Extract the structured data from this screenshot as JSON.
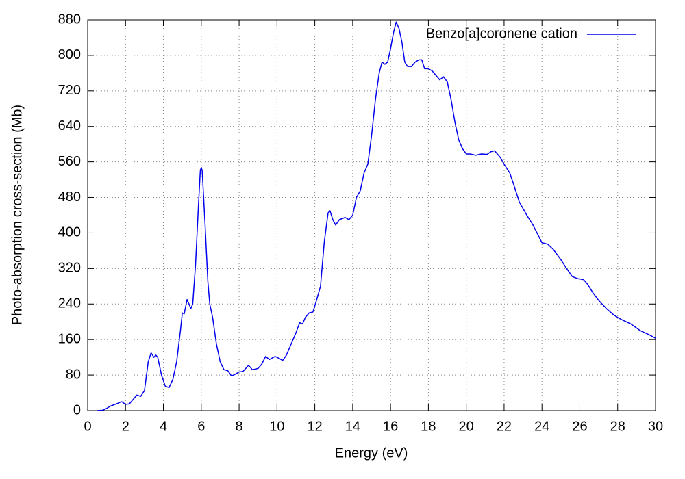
{
  "chart_data": {
    "type": "line",
    "xlabel": "Energy (eV)",
    "ylabel": "Photo-absorption cross-section (Mb)",
    "xlim": [
      0,
      30
    ],
    "ylim": [
      0,
      880
    ],
    "xticks": [
      0,
      2,
      4,
      6,
      8,
      10,
      12,
      14,
      16,
      18,
      20,
      22,
      24,
      26,
      28,
      30
    ],
    "yticks": [
      0,
      80,
      160,
      240,
      320,
      400,
      480,
      560,
      640,
      720,
      800,
      880
    ],
    "grid": true,
    "legend": "upper right",
    "x": [
      0.5,
      0.8,
      1,
      1.2,
      1.5,
      1.8,
      2.0,
      2.2,
      2.5,
      2.6,
      2.8,
      3.0,
      3.2,
      3.35,
      3.5,
      3.6,
      3.7,
      3.9,
      4.1,
      4.3,
      4.5,
      4.7,
      4.9,
      5.0,
      5.1,
      5.25,
      5.35,
      5.45,
      5.55,
      5.7,
      5.85,
      5.95,
      6.0,
      6.05,
      6.2,
      6.35,
      6.45,
      6.6,
      6.8,
      7.0,
      7.2,
      7.4,
      7.6,
      7.8,
      8.0,
      8.2,
      8.5,
      8.7,
      9.0,
      9.2,
      9.4,
      9.6,
      9.9,
      10.1,
      10.3,
      10.5,
      10.8,
      11.0,
      11.2,
      11.35,
      11.5,
      11.7,
      11.9,
      12.1,
      12.3,
      12.5,
      12.7,
      12.8,
      12.95,
      13.1,
      13.3,
      13.6,
      13.8,
      14.0,
      14.2,
      14.4,
      14.6,
      14.8,
      15.0,
      15.2,
      15.4,
      15.55,
      15.7,
      15.85,
      16.0,
      16.15,
      16.3,
      16.45,
      16.6,
      16.75,
      16.9,
      17.1,
      17.3,
      17.5,
      17.65,
      17.8,
      18.0,
      18.2,
      18.4,
      18.6,
      18.8,
      19.0,
      19.2,
      19.4,
      19.6,
      19.8,
      20.0,
      20.2,
      20.5,
      20.8,
      21.1,
      21.3,
      21.5,
      21.8,
      22.0,
      22.3,
      22.5,
      22.8,
      23.2,
      23.5,
      23.8,
      24.0,
      24.3,
      24.6,
      25.0,
      25.3,
      25.6,
      25.9,
      26.2,
      26.4,
      26.7,
      27.0,
      27.4,
      27.8,
      28.2,
      28.7,
      29.2,
      29.7,
      30
    ],
    "series": [
      {
        "name": "Benzo[a]coronene cation",
        "color": "#0000ee",
        "values": [
          0,
          1,
          5,
          10,
          15,
          20,
          14,
          15,
          30,
          35,
          32,
          45,
          110,
          130,
          120,
          125,
          120,
          80,
          55,
          52,
          70,
          110,
          180,
          220,
          218,
          250,
          240,
          230,
          240,
          330,
          460,
          540,
          548,
          540,
          420,
          290,
          240,
          210,
          150,
          110,
          92,
          90,
          78,
          82,
          87,
          88,
          102,
          92,
          95,
          105,
          122,
          115,
          122,
          118,
          113,
          125,
          155,
          175,
          198,
          195,
          210,
          220,
          222,
          250,
          280,
          380,
          445,
          450,
          430,
          418,
          430,
          435,
          430,
          440,
          480,
          495,
          535,
          555,
          620,
          700,
          760,
          785,
          780,
          785,
          815,
          850,
          875,
          860,
          830,
          785,
          775,
          775,
          785,
          790,
          790,
          770,
          770,
          765,
          755,
          745,
          752,
          740,
          700,
          650,
          610,
          590,
          578,
          578,
          575,
          578,
          577,
          583,
          585,
          570,
          555,
          535,
          510,
          470,
          440,
          420,
          395,
          378,
          375,
          363,
          340,
          320,
          302,
          297,
          295,
          285,
          265,
          248,
          230,
          215,
          205,
          195,
          180,
          170,
          163
        ]
      }
    ]
  }
}
